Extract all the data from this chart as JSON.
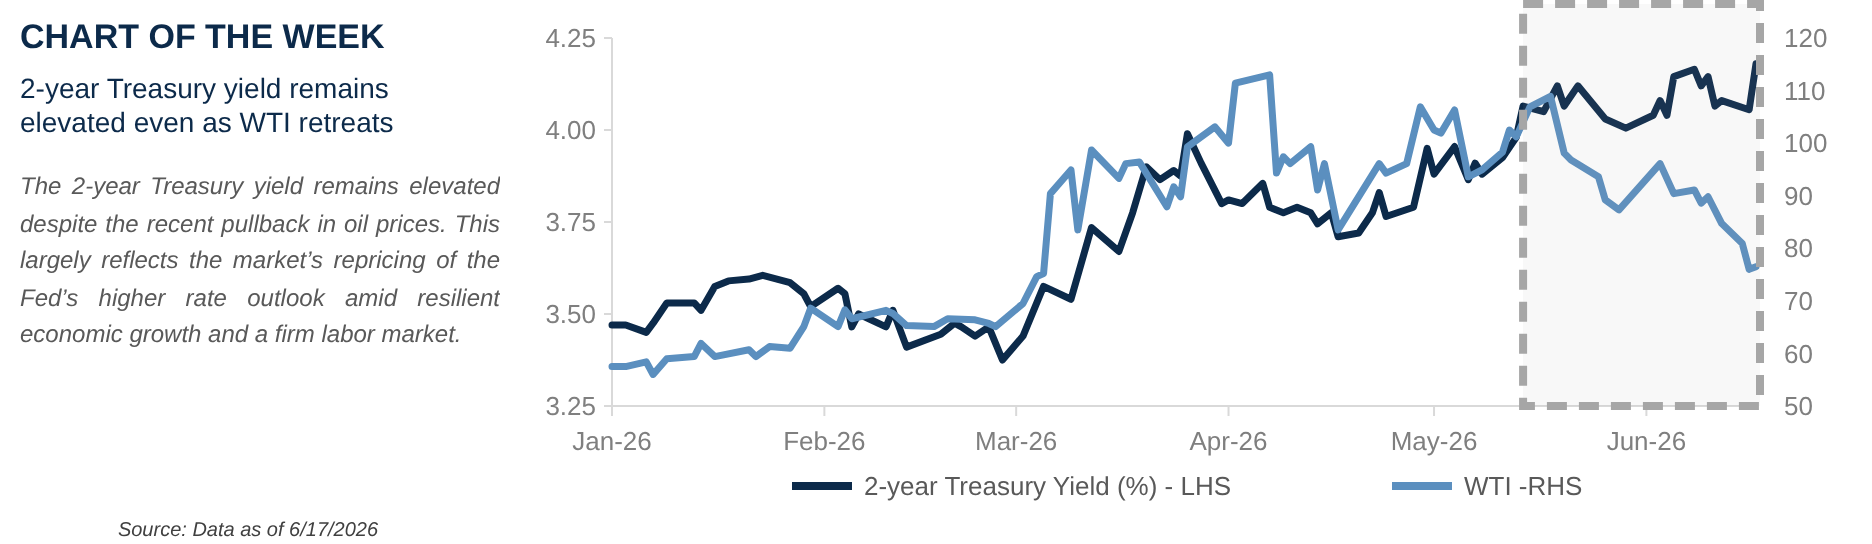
{
  "chart_data": {
    "type": "line",
    "title": "CHART OF THE WEEK",
    "subtitle": "2-year Treasury yield remains elevated even as WTI retreats",
    "annotations": [
      "The 2-year Treasury yield remains elevated despite the recent pullback in oil prices. This largely reflects the market’s repricing of the Fed’s higher rate outlook amid resilient economic growth and a firm labor market.",
      "Source: Data as of 6/17/2026"
    ],
    "xlim": [
      "2026-01-01",
      "2026-06-17"
    ],
    "xticks": [
      {
        "value": "2026-01-01",
        "label": "Jan-26"
      },
      {
        "value": "2026-02-01",
        "label": "Feb-26"
      },
      {
        "value": "2026-03-01",
        "label": "Mar-26"
      },
      {
        "value": "2026-04-01",
        "label": "Apr-26"
      },
      {
        "value": "2026-05-01",
        "label": "May-26"
      },
      {
        "value": "2026-06-01",
        "label": "Jun-26"
      }
    ],
    "ylim": [
      3.25,
      4.25
    ],
    "yticks": [
      {
        "value": 3.25,
        "label": "3.25"
      },
      {
        "value": 3.5,
        "label": "3.50"
      },
      {
        "value": 3.75,
        "label": "3.75"
      },
      {
        "value": 4,
        "label": "4.00"
      },
      {
        "value": 4.25,
        "label": "4.25"
      }
    ],
    "y2lim": [
      50,
      120
    ],
    "y2ticks": [
      50,
      60,
      70,
      80,
      90,
      100,
      110,
      120
    ],
    "grid": false,
    "legend": "bottom",
    "bands": [
      {
        "axis": "x",
        "from": "2026-05-14",
        "to": "2026-06-17",
        "color": "#a6a6a6"
      }
    ],
    "series": [
      {
        "name": "2-year Treasury Yield (%) - LHS",
        "color": "#0c2a4a",
        "x": [
          "2026-01-01",
          "2026-01-03",
          "2026-01-06",
          "2026-01-07",
          "2026-01-09",
          "2026-01-13",
          "2026-01-14",
          "2026-01-16",
          "2026-01-18",
          "2026-01-21",
          "2026-01-23",
          "2026-01-27",
          "2026-01-29",
          "2026-01-30",
          "2026-02-03",
          "2026-02-04",
          "2026-02-05",
          "2026-02-06",
          "2026-02-10",
          "2026-02-11",
          "2026-02-13",
          "2026-02-18",
          "2026-02-20",
          "2026-02-21",
          "2026-02-23",
          "2026-02-25",
          "2026-02-27",
          "2026-03-02",
          "2026-03-05",
          "2026-03-09",
          "2026-03-12",
          "2026-03-16",
          "2026-03-18",
          "2026-03-20",
          "2026-03-22",
          "2026-03-24",
          "2026-03-25",
          "2026-03-26",
          "2026-03-28",
          "2026-03-31",
          "2026-04-01",
          "2026-04-03",
          "2026-04-06",
          "2026-04-07",
          "2026-04-09",
          "2026-04-11",
          "2026-04-13",
          "2026-04-14",
          "2026-04-16",
          "2026-04-17",
          "2026-04-20",
          "2026-04-22",
          "2026-04-23",
          "2026-04-24",
          "2026-04-28",
          "2026-04-30",
          "2026-05-01",
          "2026-05-04",
          "2026-05-06",
          "2026-05-07",
          "2026-05-08",
          "2026-05-11",
          "2026-05-13",
          "2026-05-14",
          "2026-05-17",
          "2026-05-19",
          "2026-05-20",
          "2026-05-22",
          "2026-05-26",
          "2026-05-29",
          "2026-06-02",
          "2026-06-03",
          "2026-06-04",
          "2026-06-05",
          "2026-06-08",
          "2026-06-09",
          "2026-06-10",
          "2026-06-11",
          "2026-06-12",
          "2026-06-16",
          "2026-06-17"
        ],
        "values": [
          3.47,
          3.47,
          3.45,
          3.475,
          3.53,
          3.53,
          3.51,
          3.575,
          3.59,
          3.595,
          3.605,
          3.585,
          3.555,
          3.52,
          3.57,
          3.555,
          3.465,
          3.5,
          3.465,
          3.51,
          3.41,
          3.445,
          3.475,
          3.465,
          3.44,
          3.465,
          3.375,
          3.44,
          3.575,
          3.54,
          3.735,
          3.67,
          3.775,
          3.9,
          3.865,
          3.89,
          3.875,
          3.99,
          3.91,
          3.8,
          3.81,
          3.8,
          3.855,
          3.79,
          3.775,
          3.79,
          3.775,
          3.745,
          3.775,
          3.71,
          3.72,
          3.775,
          3.83,
          3.765,
          3.79,
          3.95,
          3.88,
          3.955,
          3.865,
          3.91,
          3.88,
          3.925,
          3.98,
          4.065,
          4.05,
          4.12,
          4.065,
          4.12,
          4.03,
          4.005,
          4.04,
          4.08,
          4.04,
          4.145,
          4.165,
          4.12,
          4.145,
          4.065,
          4.08,
          4.055,
          4.18
        ]
      },
      {
        "name": "WTI -RHS",
        "color": "#5b8fbf",
        "axis": "y2",
        "x": [
          "2026-01-01",
          "2026-01-03",
          "2026-01-06",
          "2026-01-07",
          "2026-01-09",
          "2026-01-13",
          "2026-01-14",
          "2026-01-16",
          "2026-01-21",
          "2026-01-22",
          "2026-01-24",
          "2026-01-27",
          "2026-01-29",
          "2026-01-30",
          "2026-02-03",
          "2026-02-04",
          "2026-02-05",
          "2026-02-10",
          "2026-02-11",
          "2026-02-13",
          "2026-02-17",
          "2026-02-19",
          "2026-02-23",
          "2026-02-25",
          "2026-02-26",
          "2026-03-02",
          "2026-03-04",
          "2026-03-05",
          "2026-03-06",
          "2026-03-09",
          "2026-03-10",
          "2026-03-12",
          "2026-03-16",
          "2026-03-17",
          "2026-03-19",
          "2026-03-23",
          "2026-03-24",
          "2026-03-25",
          "2026-03-26",
          "2026-03-30",
          "2026-04-01",
          "2026-04-02",
          "2026-04-07",
          "2026-04-08",
          "2026-04-09",
          "2026-04-10",
          "2026-04-13",
          "2026-04-14",
          "2026-04-15",
          "2026-04-17",
          "2026-04-23",
          "2026-04-24",
          "2026-04-27",
          "2026-04-29",
          "2026-05-01",
          "2026-05-02",
          "2026-05-04",
          "2026-05-06",
          "2026-05-08",
          "2026-05-11",
          "2026-05-12",
          "2026-05-13",
          "2026-05-15",
          "2026-05-18",
          "2026-05-20",
          "2026-05-21",
          "2026-05-25",
          "2026-05-26",
          "2026-05-28",
          "2026-06-03",
          "2026-06-05",
          "2026-06-08",
          "2026-06-09",
          "2026-06-10",
          "2026-06-12",
          "2026-06-15",
          "2026-06-16",
          "2026-06-17"
        ],
        "values": [
          57.5,
          57.5,
          58.4,
          56,
          59,
          59.4,
          61.9,
          59.4,
          60.7,
          59.4,
          61.3,
          61,
          65.1,
          68.6,
          65.1,
          68.3,
          66.6,
          68.2,
          67.6,
          65.3,
          65.1,
          66.6,
          66.4,
          65.7,
          65.1,
          69.5,
          74.6,
          75.2,
          90.4,
          94.9,
          83.5,
          98.7,
          93.3,
          96.1,
          96.4,
          87.9,
          91.7,
          89.8,
          99.3,
          103.1,
          100,
          111.4,
          113,
          94.3,
          97.4,
          96.1,
          99.3,
          91.1,
          96.1,
          83.5,
          96.1,
          94.3,
          96.1,
          106.9,
          102.5,
          101.9,
          106.3,
          93.6,
          94.9,
          98.3,
          102.5,
          101.2,
          106.9,
          108.9,
          98.1,
          96.8,
          93.6,
          89.2,
          87.3,
          96.1,
          90.4,
          91.1,
          88.6,
          89.8,
          84.7,
          80.9,
          76,
          76.5
        ]
      }
    ]
  }
}
